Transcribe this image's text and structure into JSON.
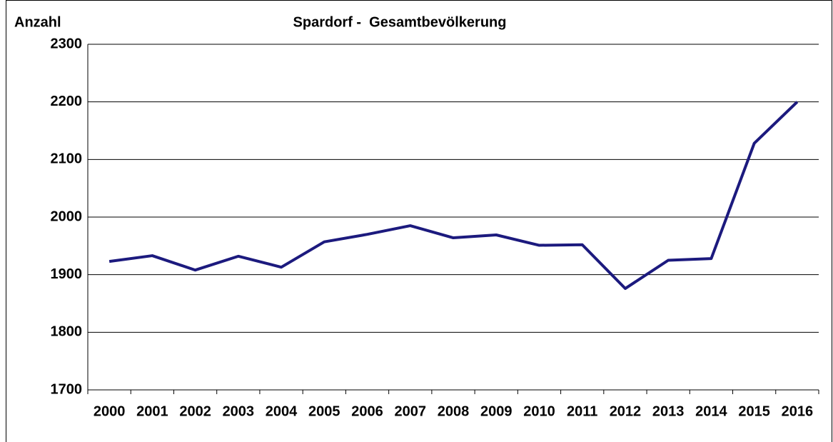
{
  "chart_data": {
    "type": "line",
    "title": "Spardorf -  Gesamtbevölkerung",
    "y_label": "Anzahl",
    "categories": [
      "2000",
      "2001",
      "2002",
      "2003",
      "2004",
      "2005",
      "2006",
      "2007",
      "2008",
      "2009",
      "2010",
      "2011",
      "2012",
      "2013",
      "2014",
      "2015",
      "2016"
    ],
    "series": [
      {
        "name": "Gesamtbevölkerung",
        "color": "#1c1a7e",
        "values": [
          1923,
          1933,
          1908,
          1932,
          1913,
          1957,
          1970,
          1985,
          1964,
          1969,
          1951,
          1952,
          1876,
          1925,
          1928,
          2128,
          2200
        ]
      }
    ],
    "ylim": [
      1700,
      2300
    ],
    "yticks": [
      1700,
      1800,
      1900,
      2000,
      2100,
      2200,
      2300
    ],
    "grid": true
  }
}
